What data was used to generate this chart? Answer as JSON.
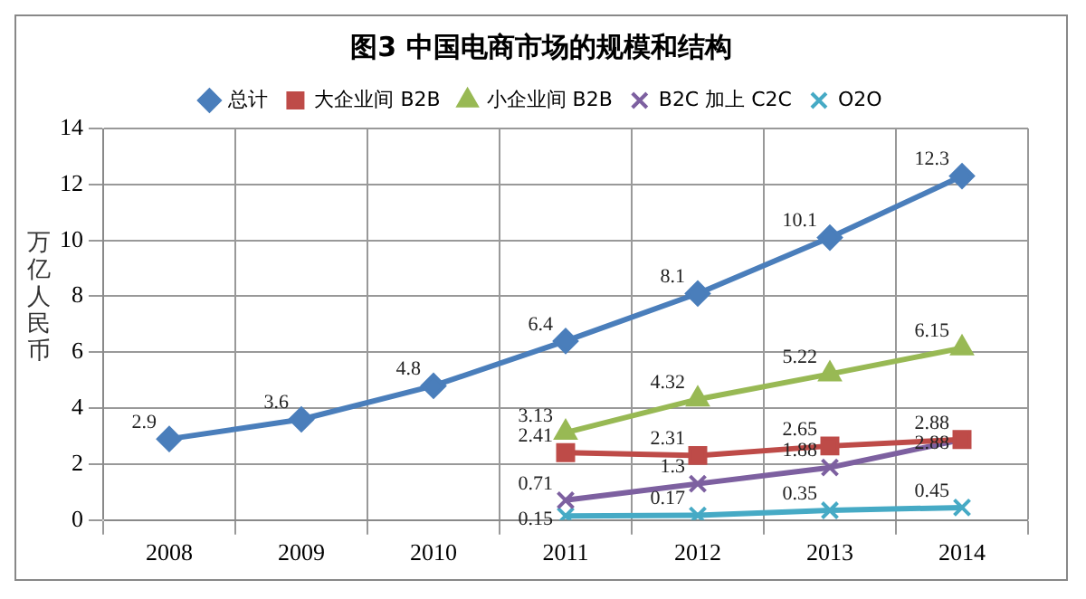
{
  "chart_data": {
    "type": "line",
    "title": "图3 中国电商市场的规模和结构",
    "ylabel": "万亿人民币",
    "categories": [
      "2008",
      "2009",
      "2010",
      "2011",
      "2012",
      "2013",
      "2014"
    ],
    "series": [
      {
        "name": "总计",
        "color": "#4a7ebb",
        "marker": "diamond",
        "values": [
          2.9,
          3.6,
          4.8,
          6.4,
          8.1,
          10.1,
          12.3
        ]
      },
      {
        "name": "大企业间 B2B",
        "color": "#be4b48",
        "marker": "square",
        "values": [
          null,
          null,
          null,
          2.41,
          2.31,
          2.65,
          2.88
        ]
      },
      {
        "name": "小企业间 B2B",
        "color": "#98b954",
        "marker": "triangle",
        "values": [
          null,
          null,
          null,
          3.13,
          4.32,
          5.22,
          6.15
        ]
      },
      {
        "name": "B2C 加上 C2C",
        "color": "#7d60a0",
        "marker": "cross",
        "values": [
          null,
          null,
          null,
          0.71,
          1.3,
          1.88,
          2.88
        ]
      },
      {
        "name": "O2O",
        "color": "#46aac5",
        "marker": "cross",
        "values": [
          null,
          null,
          null,
          0.15,
          0.17,
          0.35,
          0.45
        ]
      }
    ],
    "ylim": [
      0,
      14
    ],
    "yticks": [
      0,
      2,
      4,
      6,
      8,
      10,
      12,
      14
    ],
    "grid": true,
    "legend": "top",
    "data_labels": true
  }
}
